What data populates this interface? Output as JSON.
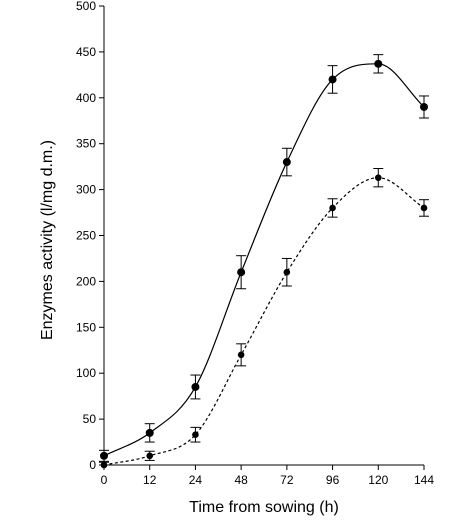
{
  "chart_data": {
    "type": "line",
    "title": "",
    "xlabel": "Time from sowing (h)",
    "ylabel": "Enzymes activity (l/mg d.m.)",
    "x_categories": [
      "0",
      "12",
      "24",
      "48",
      "72",
      "96",
      "120",
      "144"
    ],
    "xlim": [
      0,
      7
    ],
    "ylim": [
      0,
      500
    ],
    "y_ticks": [
      0,
      50,
      100,
      150,
      200,
      250,
      300,
      350,
      400,
      450,
      500
    ],
    "grid": false,
    "legend": "none",
    "series": [
      {
        "line_style": "solid",
        "marker": "circle",
        "x": [
          0,
          1,
          2,
          3,
          4,
          5,
          6,
          7
        ],
        "values": [
          10,
          35,
          85,
          210,
          330,
          420,
          437,
          390
        ],
        "error": [
          6,
          10,
          13,
          18,
          15,
          15,
          10,
          12
        ]
      },
      {
        "line_style": "dashed",
        "marker": "circle",
        "x": [
          0,
          1,
          2,
          3,
          4,
          5,
          6,
          7
        ],
        "values": [
          0,
          10,
          33,
          120,
          210,
          280,
          313,
          280
        ],
        "error": [
          3,
          5,
          8,
          12,
          15,
          10,
          10,
          9
        ]
      }
    ],
    "colors": {
      "line": "#000000",
      "marker": "#000000"
    }
  }
}
